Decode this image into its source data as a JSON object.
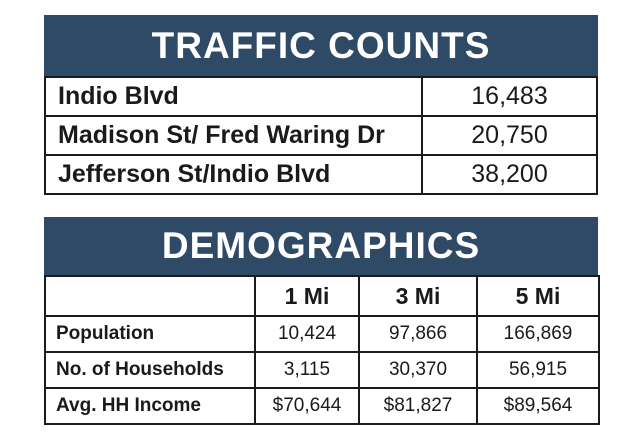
{
  "traffic": {
    "title": "TRAFFIC COUNTS",
    "rows": [
      {
        "label": "Indio Blvd",
        "value": "16,483"
      },
      {
        "label": "Madison St/ Fred Waring Dr",
        "value": "20,750"
      },
      {
        "label": "Jefferson St/Indio Blvd",
        "value": "38,200"
      }
    ]
  },
  "demographics": {
    "title": "DEMOGRAPHICS",
    "columns": [
      "",
      "1 Mi",
      "3 Mi",
      "5 Mi"
    ],
    "rows": [
      {
        "label": "Population",
        "values": [
          "10,424",
          "97,866",
          "166,869"
        ]
      },
      {
        "label": "No. of Households",
        "values": [
          "3,115",
          "30,370",
          "56,915"
        ]
      },
      {
        "label": "Avg. HH Income",
        "values": [
          "$70,644",
          "$81,827",
          "$89,564"
        ]
      }
    ]
  },
  "colors": {
    "banner": "#2e4a66",
    "border": "#1a1a1a"
  }
}
